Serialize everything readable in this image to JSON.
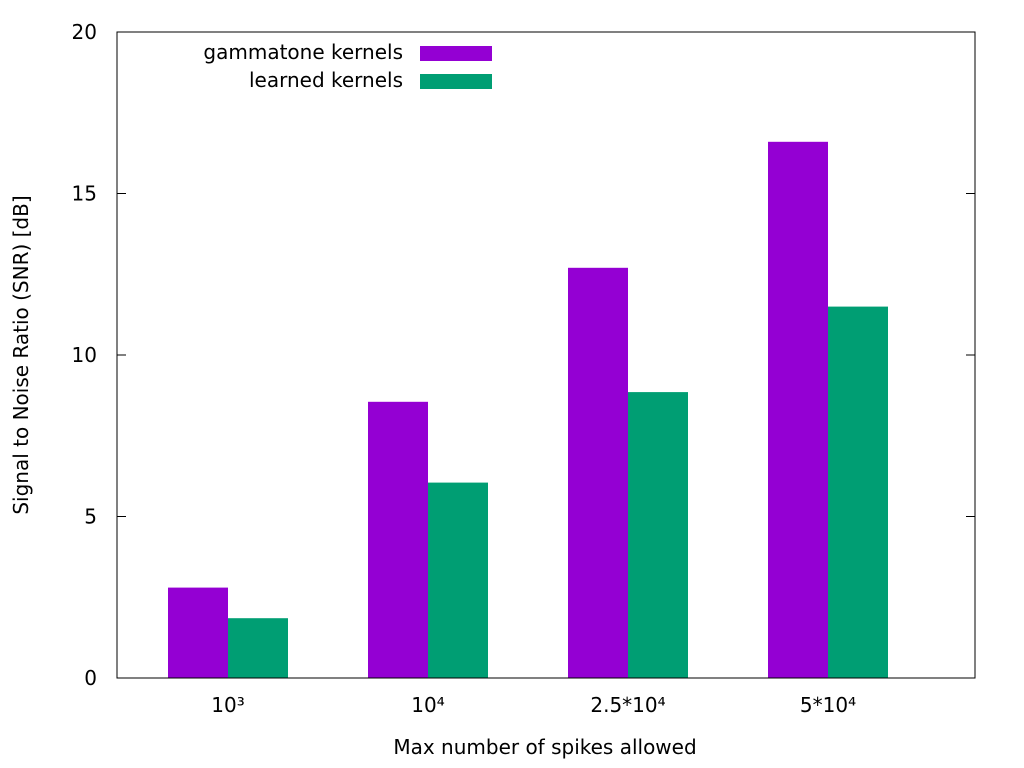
{
  "chart_data": {
    "type": "bar",
    "title": "",
    "xlabel": "Max number of spikes allowed",
    "ylabel": "Signal to Noise Ratio (SNR) [dB]",
    "categories": [
      "10³",
      "10⁴",
      "2.5*10⁴",
      "5*10⁴"
    ],
    "series": [
      {
        "name": "gammatone kernels",
        "color": "#9400d3",
        "values": [
          2.8,
          8.55,
          12.7,
          16.6
        ]
      },
      {
        "name": "learned kernels",
        "color": "#009e73",
        "values": [
          1.85,
          6.05,
          8.85,
          11.5
        ]
      }
    ],
    "ylim": [
      0,
      20
    ],
    "yticks": [
      0,
      5,
      10,
      15,
      20
    ],
    "ytick_labels": [
      "0",
      "5",
      "10",
      "15",
      "20"
    ],
    "grid": false,
    "legend_position": "top-left"
  }
}
